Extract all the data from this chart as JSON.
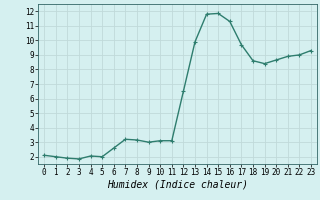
{
  "x": [
    0,
    1,
    2,
    3,
    4,
    5,
    6,
    7,
    8,
    9,
    10,
    11,
    12,
    13,
    14,
    15,
    16,
    17,
    18,
    19,
    20,
    21,
    22,
    23
  ],
  "y": [
    2.1,
    2.0,
    1.9,
    1.85,
    2.05,
    2.0,
    2.6,
    3.2,
    3.15,
    3.0,
    3.1,
    3.1,
    6.5,
    9.9,
    11.8,
    11.85,
    11.3,
    9.7,
    8.6,
    8.4,
    8.65,
    8.9,
    9.0,
    9.3
  ],
  "line_color": "#2e7d6e",
  "marker": "+",
  "marker_size": 3.5,
  "line_width": 1.0,
  "xlabel": "Humidex (Indice chaleur)",
  "xlabel_fontsize": 7,
  "xlabel_style": "italic",
  "xlabel_family": "monospace",
  "ylim": [
    1.5,
    12.5
  ],
  "xlim": [
    -0.5,
    23.5
  ],
  "yticks": [
    2,
    3,
    4,
    5,
    6,
    7,
    8,
    9,
    10,
    11,
    12
  ],
  "xticks": [
    0,
    1,
    2,
    3,
    4,
    5,
    6,
    7,
    8,
    9,
    10,
    11,
    12,
    13,
    14,
    15,
    16,
    17,
    18,
    19,
    20,
    21,
    22,
    23
  ],
  "tick_fontsize": 5.5,
  "tick_family": "monospace",
  "bg_color": "#d5f0f0",
  "grid_color": "#c0dada",
  "grid_linewidth": 0.6
}
